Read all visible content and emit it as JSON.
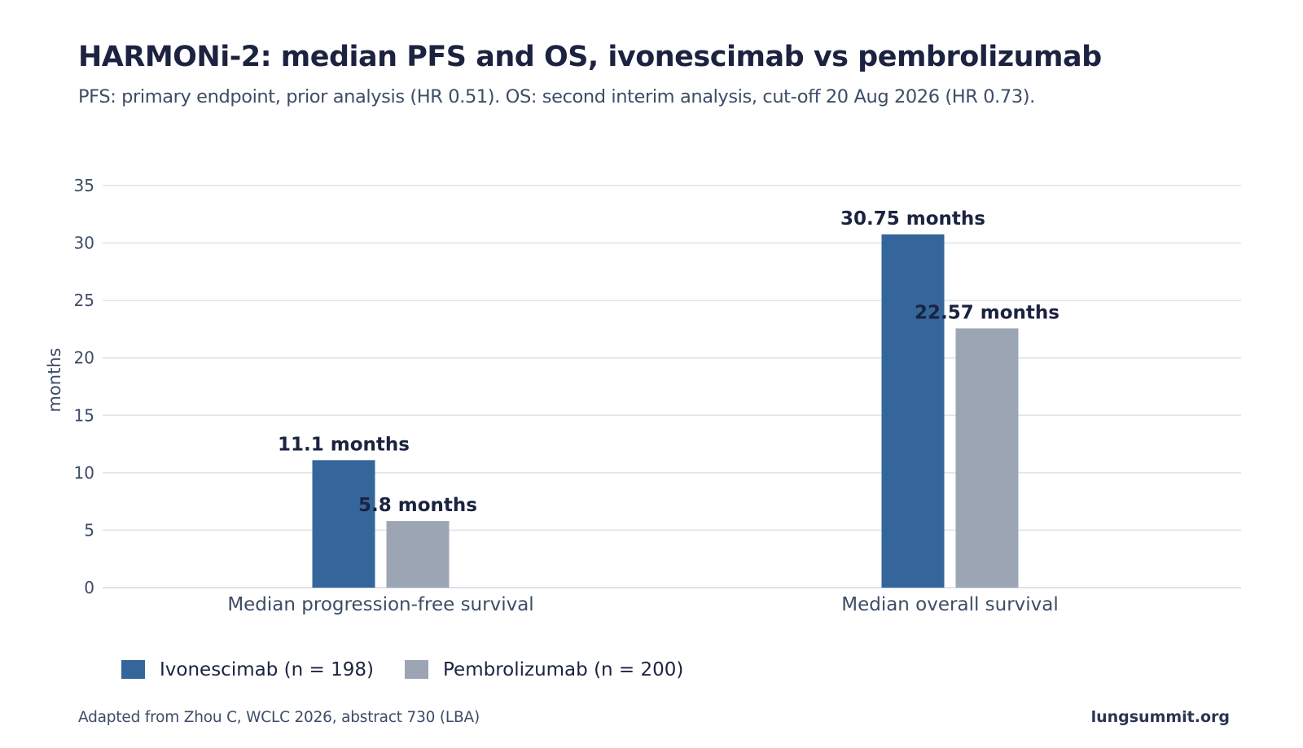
{
  "chart_data": {
    "type": "bar",
    "title": "HARMONi-2: median PFS and OS, ivonescimab vs pembrolizumab",
    "subtitle": "PFS: primary endpoint, prior analysis (HR 0.51). OS: second interim analysis, cut-off 20 Aug 2026 (HR 0.73).",
    "categories": [
      "Median progression-free survival",
      "Median overall survival"
    ],
    "series": [
      {
        "name": "Ivonescimab (n = 198)",
        "values": [
          11.1,
          30.75
        ],
        "labels": [
          "11.1 months",
          "30.75 months"
        ],
        "color": "#35669b"
      },
      {
        "name": "Pembrolizumab (n = 200)",
        "values": [
          5.8,
          22.57
        ],
        "labels": [
          "5.8 months",
          "22.57 months"
        ],
        "color": "#9ca5b4"
      }
    ],
    "xlabel": "",
    "ylabel": "months",
    "ylim": [
      0,
      35
    ],
    "yticks": [
      0,
      5,
      10,
      15,
      20,
      25,
      30,
      35
    ],
    "grid": true,
    "legend_position": "bottom-left"
  },
  "footer": {
    "source": "Adapted from Zhou C, WCLC 2026, abstract 730 (LBA)",
    "brand": "lungsummit.org"
  },
  "colors": {
    "grid": "#dde3ea",
    "axis_text": "#3d4d66",
    "label_text": "#1b2340"
  }
}
